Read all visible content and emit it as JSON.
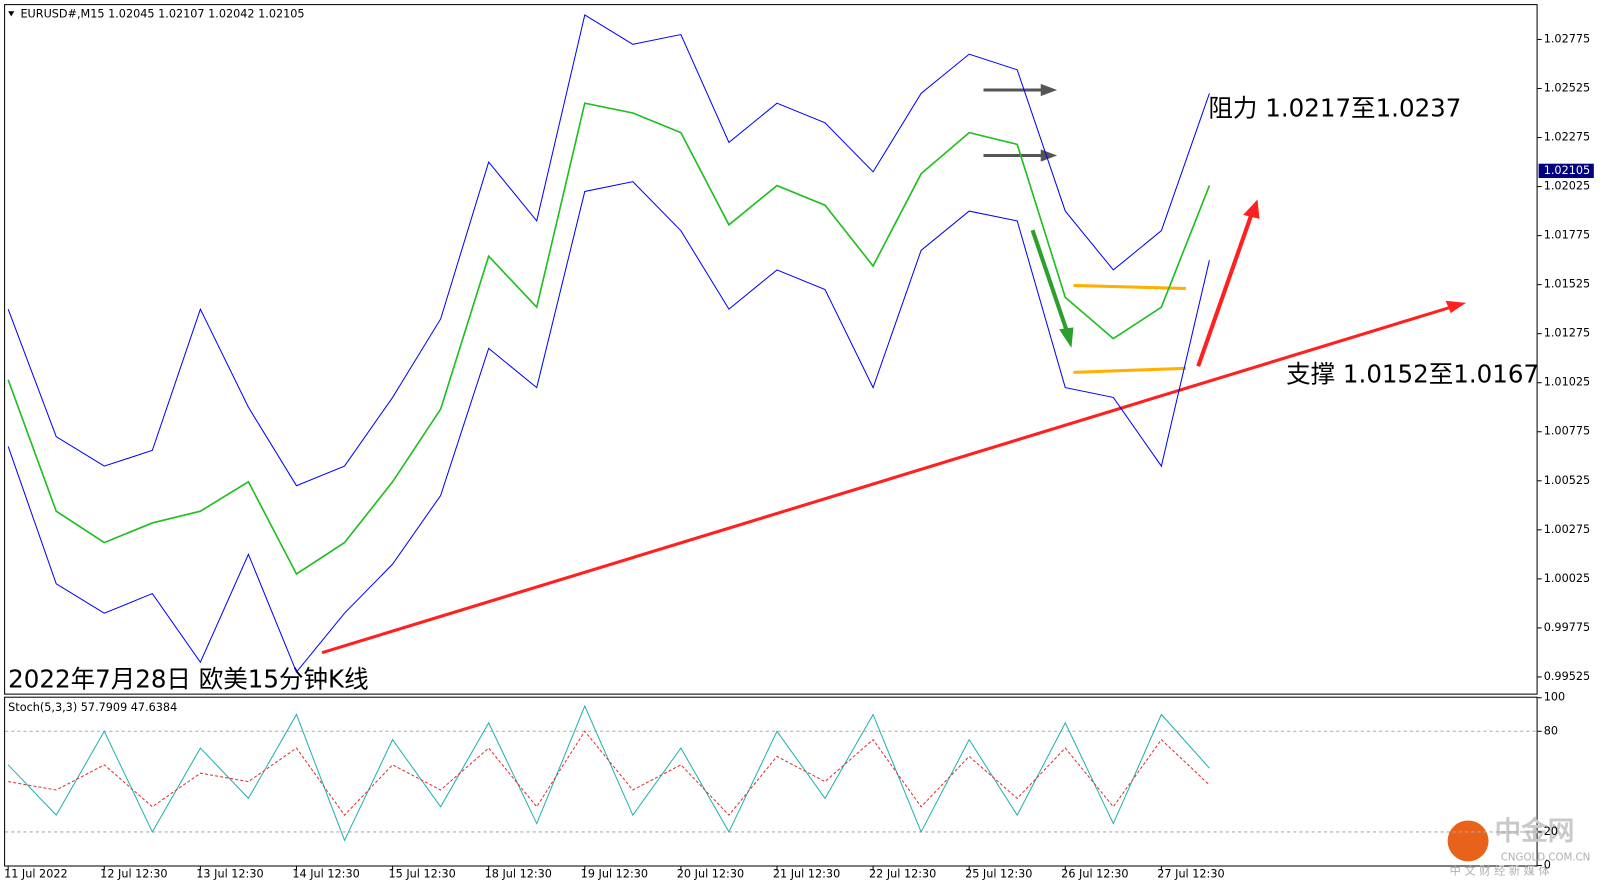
{
  "chart_data": [
    {
      "type": "line",
      "title": "EURUSD#,M15  1.02045 1.02107 1.02042 1.02105",
      "annotations": [
        "阻力 1.0217至1.0237",
        "支撑 1.0152至1.0167",
        "2022年7月28日 欧美15分钟K线"
      ],
      "last_price": 1.02105,
      "categories": [
        "11 Jul 2022",
        null,
        "12 Jul 12:30",
        null,
        "13 Jul 12:30",
        null,
        "14 Jul 12:30",
        null,
        "15 Jul 12:30",
        null,
        "18 Jul 12:30",
        null,
        "19 Jul 12:30",
        null,
        "20 Jul 12:30",
        null,
        "21 Jul 12:30",
        null,
        "22 Jul 12:30",
        null,
        "25 Jul 12:30",
        null,
        "26 Jul 12:30",
        null,
        "27 Jul 12:30",
        null
      ],
      "series": [
        {
          "color": "#0000ff",
          "values": [
            1.014,
            1.0075,
            1.006,
            1.0068,
            1.014,
            1.009,
            1.005,
            1.006,
            1.0095,
            1.0135,
            1.0215,
            1.0185,
            1.029,
            1.0275,
            1.028,
            1.0225,
            1.0245,
            1.0235,
            1.021,
            1.025,
            1.027,
            1.0262,
            1.019,
            1.016,
            1.018,
            1.025
          ]
        },
        {
          "color": "#0000ff",
          "values": [
            1.007,
            1.0,
            0.9985,
            0.9995,
            0.996,
            1.0015,
            0.9955,
            0.9985,
            1.001,
            1.0045,
            1.012,
            1.01,
            1.02,
            1.0205,
            1.018,
            1.014,
            1.016,
            1.015,
            1.01,
            1.017,
            1.019,
            1.0185,
            1.01,
            1.0095,
            1.006,
            1.0165
          ]
        },
        {
          "color": "#1fbf1f",
          "values": [
            1.0104,
            1.0037,
            1.0021,
            1.0031,
            1.0037,
            1.0052,
            1.0005,
            1.0021,
            1.0052,
            1.0089,
            1.0167,
            1.0141,
            1.0245,
            1.024,
            1.023,
            1.0183,
            1.0203,
            1.0193,
            1.0162,
            1.0209,
            1.023,
            1.0224,
            1.0146,
            1.0125,
            1.0141,
            1.0203
          ]
        }
      ],
      "ylim": [
        0.9944,
        1.0295
      ],
      "yticks": [
        1.02775,
        1.02525,
        1.02275,
        1.02025,
        1.01775,
        1.01525,
        1.01275,
        1.01025,
        1.00775,
        1.00525,
        1.00275,
        1.00025,
        0.99775,
        0.99525
      ],
      "grid": false
    },
    {
      "type": "line",
      "title": "Stoch(5,3,3) 57.7909 47.6384",
      "series": [
        {
          "color": "#20b2aa",
          "values": [
            60,
            30,
            80,
            20,
            70,
            40,
            90,
            15,
            75,
            35,
            85,
            25,
            95,
            30,
            70,
            20,
            80,
            40,
            90,
            20,
            75,
            30,
            85,
            25,
            90,
            58
          ]
        },
        {
          "color": "#e03030",
          "values": [
            50,
            45,
            60,
            35,
            55,
            50,
            70,
            30,
            60,
            45,
            70,
            35,
            80,
            45,
            60,
            30,
            65,
            50,
            75,
            35,
            65,
            40,
            70,
            35,
            75,
            48
          ]
        }
      ],
      "ylim": [
        0,
        100
      ],
      "yticks": [
        100,
        80,
        20,
        0
      ],
      "levels": [
        80,
        20
      ]
    }
  ],
  "watermark": {
    "brand": "中金网",
    "site": "CNGOLD.COM.CN",
    "slogan": "中 文 财 经 新 媒 体"
  }
}
